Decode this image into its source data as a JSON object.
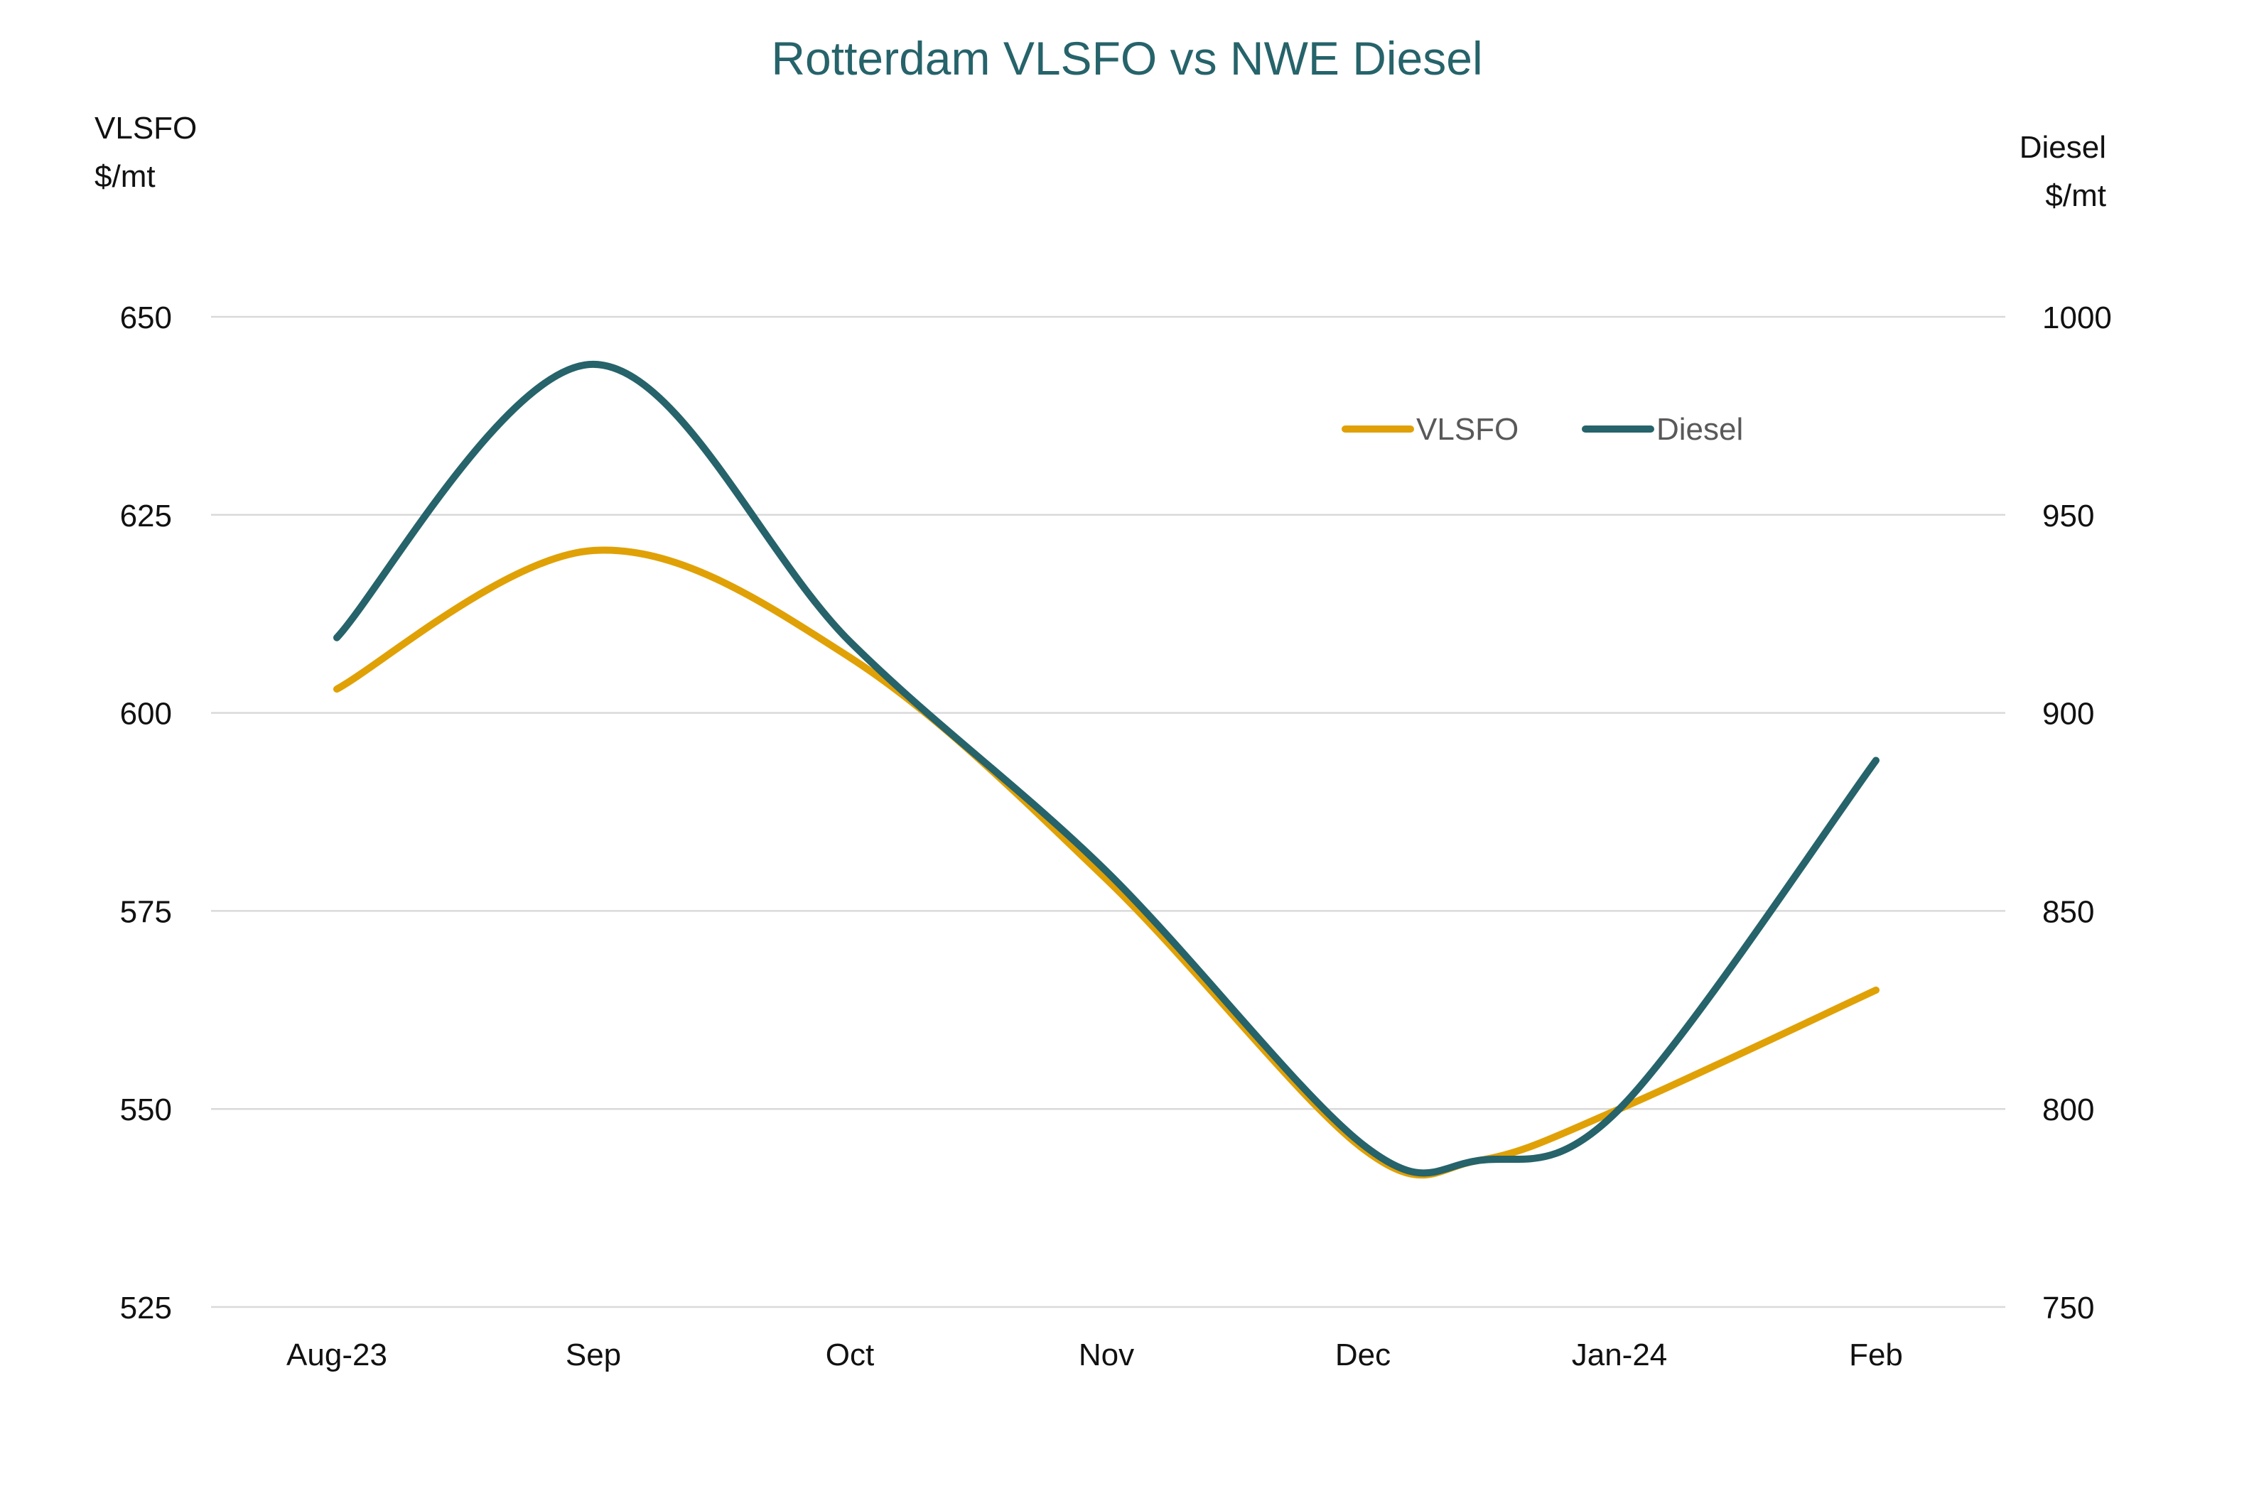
{
  "chart_data": {
    "type": "line",
    "title": "Rotterdam VLSFO vs NWE Diesel",
    "categories": [
      "Aug-23",
      "Sep",
      "Oct",
      "Nov",
      "Dec",
      "Jan-24",
      "Feb"
    ],
    "y_left": {
      "label_line1": "VLSFO",
      "label_line2": "$/mt",
      "ylim": [
        525,
        650
      ],
      "ticks": [
        "525",
        "550",
        "575",
        "600",
        "625",
        "650"
      ]
    },
    "y_right": {
      "label_line1": "Diesel",
      "label_line2": "$/mt",
      "ylim": [
        750,
        1000
      ],
      "ticks": [
        "750",
        "800",
        "850",
        "900",
        "950",
        "1000"
      ]
    },
    "series": [
      {
        "name": "VLSFO",
        "axis": "left",
        "color": "#e0a106",
        "x": [
          "2023-08-01",
          "2023-09-01",
          "2023-10-01",
          "2023-11-01",
          "2023-12-01",
          "2023-12-15",
          "2024-01-01",
          "2024-02-01"
        ],
        "values": [
          603,
          620.5,
          607,
          579,
          545,
          543.5,
          550,
          565
        ]
      },
      {
        "name": "Diesel",
        "axis": "right",
        "color": "#26636a",
        "x": [
          "2023-08-01",
          "2023-09-01",
          "2023-10-01",
          "2023-11-01",
          "2023-12-01",
          "2023-12-15",
          "2024-01-01",
          "2024-02-01"
        ],
        "values": [
          919,
          988,
          918,
          860,
          791,
          787,
          800,
          888
        ]
      }
    ],
    "grid": true,
    "legend_position": "top-right",
    "colors": {
      "title": "#26636a",
      "grid": "#d9d9d9"
    }
  }
}
